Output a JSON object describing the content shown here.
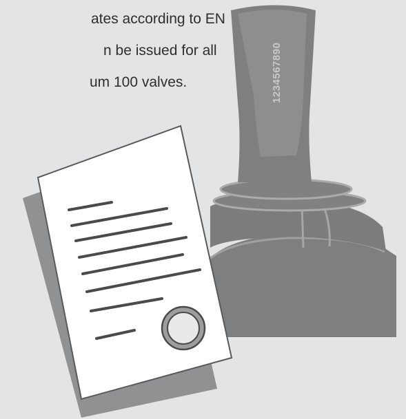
{
  "text_lines": [
    "ates according to EN",
    "n be issued for all",
    "um 100 valves."
  ],
  "valve_label": "1234567890"
}
